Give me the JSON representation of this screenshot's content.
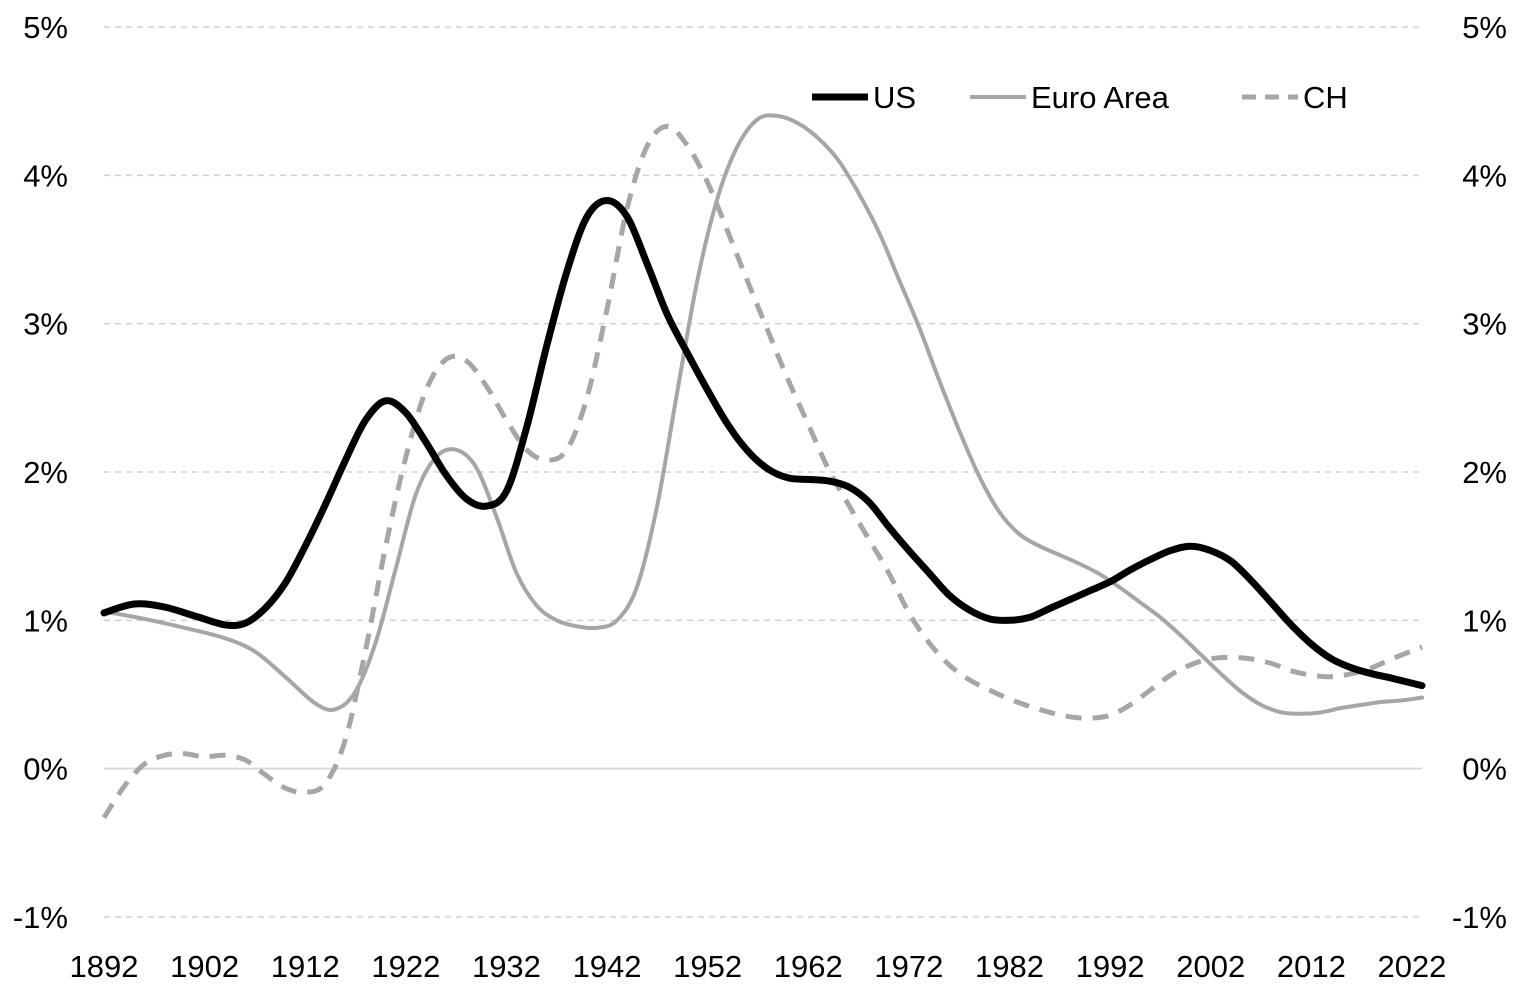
{
  "chart_data": {
    "type": "line",
    "title": "",
    "xlabel": "",
    "ylabel": "",
    "x_ticks": [
      "1892",
      "1902",
      "1912",
      "1922",
      "1932",
      "1942",
      "1952",
      "1962",
      "1972",
      "1982",
      "1992",
      "2002",
      "2012",
      "2022"
    ],
    "y_ticks": [
      "-1%",
      "0%",
      "1%",
      "2%",
      "3%",
      "4%",
      "5%"
    ],
    "y_ticks_right": [
      "-1%",
      "0%",
      "1%",
      "2%",
      "3%",
      "4%",
      "5%"
    ],
    "xlim": [
      1892,
      2023
    ],
    "ylim": [
      -1,
      5
    ],
    "grid": true,
    "legend_position": "top-right",
    "series": [
      {
        "name": "US",
        "color": "#000000",
        "style": "solid-thick",
        "points": [
          [
            1892,
            1.05
          ],
          [
            1895,
            1.11
          ],
          [
            1898,
            1.09
          ],
          [
            1901,
            1.03
          ],
          [
            1904,
            0.97
          ],
          [
            1906,
            0.98
          ],
          [
            1908,
            1.08
          ],
          [
            1910,
            1.25
          ],
          [
            1912,
            1.5
          ],
          [
            1914,
            1.78
          ],
          [
            1916,
            2.08
          ],
          [
            1918,
            2.35
          ],
          [
            1920,
            2.48
          ],
          [
            1922,
            2.4
          ],
          [
            1924,
            2.2
          ],
          [
            1926,
            1.98
          ],
          [
            1928,
            1.82
          ],
          [
            1930,
            1.77
          ],
          [
            1932,
            1.87
          ],
          [
            1934,
            2.3
          ],
          [
            1936,
            2.85
          ],
          [
            1938,
            3.35
          ],
          [
            1940,
            3.72
          ],
          [
            1942,
            3.83
          ],
          [
            1944,
            3.72
          ],
          [
            1946,
            3.4
          ],
          [
            1948,
            3.06
          ],
          [
            1950,
            2.8
          ],
          [
            1952,
            2.55
          ],
          [
            1954,
            2.32
          ],
          [
            1956,
            2.14
          ],
          [
            1958,
            2.02
          ],
          [
            1960,
            1.96
          ],
          [
            1962,
            1.95
          ],
          [
            1964,
            1.94
          ],
          [
            1966,
            1.9
          ],
          [
            1968,
            1.8
          ],
          [
            1970,
            1.63
          ],
          [
            1972,
            1.47
          ],
          [
            1974,
            1.32
          ],
          [
            1976,
            1.17
          ],
          [
            1978,
            1.07
          ],
          [
            1980,
            1.01
          ],
          [
            1982,
            1.0
          ],
          [
            1984,
            1.02
          ],
          [
            1986,
            1.08
          ],
          [
            1988,
            1.14
          ],
          [
            1990,
            1.2
          ],
          [
            1992,
            1.26
          ],
          [
            1994,
            1.34
          ],
          [
            1996,
            1.41
          ],
          [
            1998,
            1.47
          ],
          [
            2000,
            1.5
          ],
          [
            2002,
            1.47
          ],
          [
            2004,
            1.4
          ],
          [
            2006,
            1.27
          ],
          [
            2008,
            1.12
          ],
          [
            2010,
            0.97
          ],
          [
            2012,
            0.84
          ],
          [
            2014,
            0.74
          ],
          [
            2016,
            0.68
          ],
          [
            2018,
            0.64
          ],
          [
            2020,
            0.61
          ],
          [
            2023,
            0.56
          ]
        ]
      },
      {
        "name": "Euro Area",
        "color": "#a6a6a6",
        "style": "solid",
        "points": [
          [
            1892,
            1.06
          ],
          [
            1896,
            1.01
          ],
          [
            1900,
            0.95
          ],
          [
            1904,
            0.88
          ],
          [
            1907,
            0.79
          ],
          [
            1910,
            0.62
          ],
          [
            1913,
            0.44
          ],
          [
            1915,
            0.4
          ],
          [
            1917,
            0.52
          ],
          [
            1919,
            0.85
          ],
          [
            1921,
            1.35
          ],
          [
            1923,
            1.85
          ],
          [
            1925,
            2.1
          ],
          [
            1927,
            2.15
          ],
          [
            1929,
            2.03
          ],
          [
            1931,
            1.7
          ],
          [
            1933,
            1.32
          ],
          [
            1935,
            1.1
          ],
          [
            1937,
            1.0
          ],
          [
            1939,
            0.96
          ],
          [
            1941,
            0.95
          ],
          [
            1943,
            1.0
          ],
          [
            1945,
            1.23
          ],
          [
            1947,
            1.78
          ],
          [
            1949,
            2.55
          ],
          [
            1951,
            3.3
          ],
          [
            1953,
            3.85
          ],
          [
            1955,
            4.2
          ],
          [
            1957,
            4.38
          ],
          [
            1959,
            4.4
          ],
          [
            1961,
            4.35
          ],
          [
            1963,
            4.25
          ],
          [
            1965,
            4.1
          ],
          [
            1967,
            3.88
          ],
          [
            1969,
            3.62
          ],
          [
            1971,
            3.3
          ],
          [
            1973,
            2.98
          ],
          [
            1975,
            2.62
          ],
          [
            1977,
            2.28
          ],
          [
            1979,
            1.97
          ],
          [
            1981,
            1.73
          ],
          [
            1983,
            1.58
          ],
          [
            1985,
            1.5
          ],
          [
            1987,
            1.44
          ],
          [
            1989,
            1.38
          ],
          [
            1991,
            1.31
          ],
          [
            1993,
            1.22
          ],
          [
            1995,
            1.12
          ],
          [
            1997,
            1.02
          ],
          [
            1999,
            0.9
          ],
          [
            2001,
            0.77
          ],
          [
            2003,
            0.64
          ],
          [
            2005,
            0.52
          ],
          [
            2007,
            0.43
          ],
          [
            2009,
            0.38
          ],
          [
            2011,
            0.37
          ],
          [
            2013,
            0.38
          ],
          [
            2015,
            0.41
          ],
          [
            2017,
            0.43
          ],
          [
            2019,
            0.45
          ],
          [
            2021,
            0.46
          ],
          [
            2023,
            0.48
          ]
        ]
      },
      {
        "name": "CH",
        "color": "#a6a6a6",
        "style": "dashed",
        "points": [
          [
            1892,
            -0.33
          ],
          [
            1894,
            -0.12
          ],
          [
            1896,
            0.03
          ],
          [
            1898,
            0.09
          ],
          [
            1900,
            0.1
          ],
          [
            1902,
            0.08
          ],
          [
            1904,
            0.09
          ],
          [
            1906,
            0.06
          ],
          [
            1908,
            -0.04
          ],
          [
            1910,
            -0.13
          ],
          [
            1912,
            -0.16
          ],
          [
            1914,
            -0.1
          ],
          [
            1916,
            0.2
          ],
          [
            1918,
            0.8
          ],
          [
            1920,
            1.5
          ],
          [
            1922,
            2.1
          ],
          [
            1924,
            2.55
          ],
          [
            1926,
            2.76
          ],
          [
            1928,
            2.75
          ],
          [
            1930,
            2.58
          ],
          [
            1932,
            2.35
          ],
          [
            1934,
            2.15
          ],
          [
            1936,
            2.08
          ],
          [
            1938,
            2.15
          ],
          [
            1940,
            2.5
          ],
          [
            1942,
            3.1
          ],
          [
            1944,
            3.78
          ],
          [
            1946,
            4.2
          ],
          [
            1948,
            4.33
          ],
          [
            1950,
            4.2
          ],
          [
            1952,
            3.95
          ],
          [
            1954,
            3.62
          ],
          [
            1956,
            3.28
          ],
          [
            1958,
            2.95
          ],
          [
            1960,
            2.62
          ],
          [
            1962,
            2.32
          ],
          [
            1964,
            2.02
          ],
          [
            1966,
            1.78
          ],
          [
            1968,
            1.55
          ],
          [
            1970,
            1.32
          ],
          [
            1972,
            1.05
          ],
          [
            1974,
            0.85
          ],
          [
            1976,
            0.7
          ],
          [
            1978,
            0.6
          ],
          [
            1980,
            0.53
          ],
          [
            1982,
            0.47
          ],
          [
            1984,
            0.42
          ],
          [
            1986,
            0.38
          ],
          [
            1988,
            0.35
          ],
          [
            1990,
            0.34
          ],
          [
            1992,
            0.36
          ],
          [
            1994,
            0.43
          ],
          [
            1996,
            0.53
          ],
          [
            1998,
            0.63
          ],
          [
            2000,
            0.7
          ],
          [
            2002,
            0.74
          ],
          [
            2004,
            0.75
          ],
          [
            2006,
            0.74
          ],
          [
            2008,
            0.71
          ],
          [
            2010,
            0.66
          ],
          [
            2012,
            0.63
          ],
          [
            2014,
            0.62
          ],
          [
            2016,
            0.64
          ],
          [
            2018,
            0.68
          ],
          [
            2020,
            0.74
          ],
          [
            2023,
            0.82
          ]
        ]
      }
    ]
  }
}
